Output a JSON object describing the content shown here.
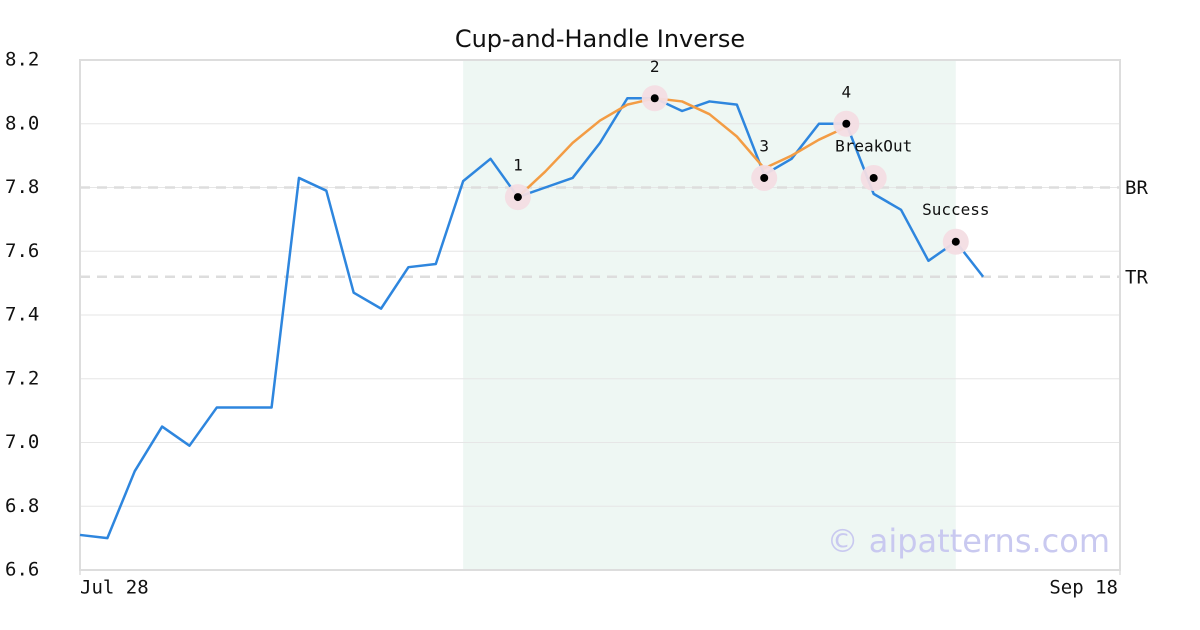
{
  "chart_data": {
    "type": "line",
    "title": "Cup-and-Handle Inverse",
    "x": [
      0,
      1,
      2,
      3,
      4,
      5,
      6,
      7,
      8,
      9,
      10,
      11,
      12,
      13,
      14,
      15,
      16,
      17,
      18,
      19,
      20,
      21,
      22,
      23,
      24,
      25,
      26,
      27,
      28,
      29,
      30,
      31,
      32,
      33
    ],
    "series": [
      {
        "color": "#2e86de",
        "values": [
          6.71,
          6.7,
          6.91,
          7.05,
          6.99,
          7.11,
          7.11,
          7.11,
          7.83,
          7.79,
          7.47,
          7.42,
          7.55,
          7.56,
          7.82,
          7.89,
          7.77,
          7.8,
          7.83,
          7.94,
          8.08,
          8.08,
          8.04,
          8.07,
          8.06,
          7.84,
          7.89,
          8.0,
          8.0,
          7.78,
          7.73,
          7.57,
          7.63,
          7.52
        ]
      },
      {
        "color": "#f39c44",
        "x": [
          16,
          17,
          18,
          19,
          20,
          21,
          22,
          23,
          24,
          25,
          26,
          27,
          28
        ],
        "values": [
          7.77,
          7.85,
          7.94,
          8.01,
          8.06,
          8.08,
          8.07,
          8.03,
          7.96,
          7.86,
          7.9,
          7.95,
          7.99
        ]
      }
    ],
    "highlight_range": [
      14,
      32
    ],
    "highlight_color": "#eef7f3",
    "levels": [
      {
        "label": "BR",
        "value": 7.8
      },
      {
        "label": "TR",
        "value": 7.52
      }
    ],
    "points": [
      {
        "label": "1",
        "x": 16,
        "y": 7.77
      },
      {
        "label": "2",
        "x": 21,
        "y": 8.08
      },
      {
        "label": "3",
        "x": 25,
        "y": 7.83
      },
      {
        "label": "4",
        "x": 28,
        "y": 8.0
      },
      {
        "label": "BreakOut",
        "x": 29,
        "y": 7.83
      },
      {
        "label": "Success",
        "x": 32,
        "y": 7.63
      }
    ],
    "xlim": [
      0,
      38
    ],
    "xticks": [
      {
        "value": 0,
        "label": "Jul 28"
      },
      {
        "value": 38,
        "label": "Sep 18"
      }
    ],
    "ylim": [
      6.6,
      8.2
    ],
    "yticks": [
      6.6,
      6.8,
      {
        "value": 7.0,
        "label": "7.0"
      },
      7.2,
      7.4,
      7.6,
      7.8,
      {
        "value": 8.0,
        "label": "8.0"
      },
      8.2
    ],
    "grid": true,
    "watermark": "© aipatterns.com"
  }
}
